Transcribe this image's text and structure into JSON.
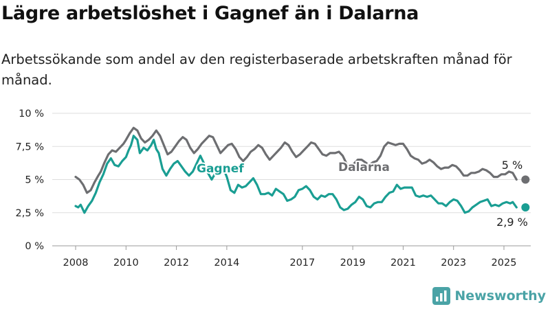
{
  "title": "Lägre arbetslöshet i Gagnef än i Dalarna",
  "subtitle": "Arbetssökande som andel av den registerbaserade arbetskraften månad för månad.",
  "brand": {
    "name": "Newsworthy",
    "icon": "bar-chart-logo-icon",
    "color": "#4aa3a6"
  },
  "chart_data": {
    "type": "line",
    "title": "Lägre arbetslöshet i Gagnef än i Dalarna",
    "subtitle": "Arbetssökande som andel av den registerbaserade arbetskraften månad för månad.",
    "xlabel": "",
    "ylabel": "",
    "ylim": [
      0,
      10
    ],
    "xlim": [
      2007.6,
      2025.8
    ],
    "grid": true,
    "y_ticks": [
      {
        "value": 0,
        "label": "0 %"
      },
      {
        "value": 2.5,
        "label": "2,5 %"
      },
      {
        "value": 5,
        "label": "5 %"
      },
      {
        "value": 7.5,
        "label": "7,5 %"
      },
      {
        "value": 10,
        "label": "10 %"
      }
    ],
    "x_ticks": [
      {
        "value": 2008,
        "label": "2008"
      },
      {
        "value": 2010,
        "label": "2010"
      },
      {
        "value": 2012,
        "label": "2012"
      },
      {
        "value": 2014,
        "label": "2014"
      },
      {
        "value": 2017,
        "label": "2017"
      },
      {
        "value": 2019,
        "label": "2019"
      },
      {
        "value": 2021,
        "label": "2021"
      },
      {
        "value": 2023,
        "label": "2023"
      },
      {
        "value": 2025,
        "label": "2025"
      }
    ],
    "series": [
      {
        "name": "Dalarna",
        "color": "#6d6e71",
        "end_label": "5 %",
        "points": [
          [
            2008.0,
            5.2
          ],
          [
            2008.15,
            5.0
          ],
          [
            2008.3,
            4.6
          ],
          [
            2008.45,
            4.0
          ],
          [
            2008.6,
            4.2
          ],
          [
            2008.75,
            4.8
          ],
          [
            2008.9,
            5.3
          ],
          [
            2009.0,
            5.6
          ],
          [
            2009.15,
            6.3
          ],
          [
            2009.3,
            6.9
          ],
          [
            2009.45,
            7.2
          ],
          [
            2009.6,
            7.1
          ],
          [
            2009.75,
            7.4
          ],
          [
            2009.9,
            7.7
          ],
          [
            2010.0,
            8.0
          ],
          [
            2010.15,
            8.5
          ],
          [
            2010.3,
            8.9
          ],
          [
            2010.45,
            8.7
          ],
          [
            2010.6,
            8.1
          ],
          [
            2010.75,
            7.8
          ],
          [
            2010.9,
            8.0
          ],
          [
            2011.05,
            8.3
          ],
          [
            2011.2,
            8.7
          ],
          [
            2011.35,
            8.3
          ],
          [
            2011.5,
            7.6
          ],
          [
            2011.65,
            6.9
          ],
          [
            2011.8,
            7.1
          ],
          [
            2011.95,
            7.5
          ],
          [
            2012.1,
            7.9
          ],
          [
            2012.25,
            8.2
          ],
          [
            2012.4,
            8.0
          ],
          [
            2012.55,
            7.4
          ],
          [
            2012.7,
            7.0
          ],
          [
            2012.85,
            7.3
          ],
          [
            2013.0,
            7.7
          ],
          [
            2013.15,
            8.0
          ],
          [
            2013.3,
            8.3
          ],
          [
            2013.45,
            8.2
          ],
          [
            2013.6,
            7.6
          ],
          [
            2013.75,
            7.0
          ],
          [
            2013.9,
            7.3
          ],
          [
            2014.05,
            7.6
          ],
          [
            2014.2,
            7.7
          ],
          [
            2014.35,
            7.3
          ],
          [
            2014.5,
            6.7
          ],
          [
            2014.65,
            6.4
          ],
          [
            2014.8,
            6.7
          ],
          [
            2014.95,
            7.1
          ],
          [
            2015.1,
            7.3
          ],
          [
            2015.25,
            7.6
          ],
          [
            2015.4,
            7.4
          ],
          [
            2015.55,
            6.9
          ],
          [
            2015.7,
            6.5
          ],
          [
            2015.85,
            6.8
          ],
          [
            2016.0,
            7.1
          ],
          [
            2016.15,
            7.4
          ],
          [
            2016.3,
            7.8
          ],
          [
            2016.45,
            7.6
          ],
          [
            2016.6,
            7.1
          ],
          [
            2016.75,
            6.7
          ],
          [
            2016.9,
            6.9
          ],
          [
            2017.05,
            7.2
          ],
          [
            2017.2,
            7.5
          ],
          [
            2017.35,
            7.8
          ],
          [
            2017.5,
            7.7
          ],
          [
            2017.65,
            7.3
          ],
          [
            2017.8,
            6.9
          ],
          [
            2017.95,
            6.8
          ],
          [
            2018.1,
            7.0
          ],
          [
            2018.3,
            7.0
          ],
          [
            2018.45,
            7.1
          ],
          [
            2018.6,
            6.8
          ],
          [
            2018.75,
            6.2
          ],
          [
            2018.9,
            6.0
          ],
          [
            2019.05,
            6.2
          ],
          [
            2019.2,
            6.5
          ],
          [
            2019.35,
            6.5
          ],
          [
            2019.5,
            6.3
          ],
          [
            2019.65,
            6.1
          ],
          [
            2019.8,
            6.3
          ],
          [
            2019.95,
            6.4
          ],
          [
            2020.1,
            6.8
          ],
          [
            2020.25,
            7.5
          ],
          [
            2020.4,
            7.8
          ],
          [
            2020.55,
            7.7
          ],
          [
            2020.7,
            7.6
          ],
          [
            2020.85,
            7.7
          ],
          [
            2021.0,
            7.7
          ],
          [
            2021.15,
            7.3
          ],
          [
            2021.3,
            6.8
          ],
          [
            2021.45,
            6.6
          ],
          [
            2021.6,
            6.5
          ],
          [
            2021.75,
            6.2
          ],
          [
            2021.9,
            6.3
          ],
          [
            2022.05,
            6.5
          ],
          [
            2022.2,
            6.3
          ],
          [
            2022.35,
            6.0
          ],
          [
            2022.5,
            5.8
          ],
          [
            2022.65,
            5.9
          ],
          [
            2022.8,
            5.9
          ],
          [
            2022.95,
            6.1
          ],
          [
            2023.1,
            6.0
          ],
          [
            2023.25,
            5.7
          ],
          [
            2023.4,
            5.3
          ],
          [
            2023.55,
            5.3
          ],
          [
            2023.7,
            5.5
          ],
          [
            2023.85,
            5.5
          ],
          [
            2024.0,
            5.6
          ],
          [
            2024.15,
            5.8
          ],
          [
            2024.3,
            5.7
          ],
          [
            2024.45,
            5.5
          ],
          [
            2024.6,
            5.2
          ],
          [
            2024.75,
            5.2
          ],
          [
            2024.9,
            5.4
          ],
          [
            2025.05,
            5.4
          ],
          [
            2025.2,
            5.6
          ],
          [
            2025.35,
            5.5
          ],
          [
            2025.5,
            5.0
          ]
        ]
      },
      {
        "name": "Gagnef",
        "color": "#1a9e93",
        "end_label": "2,9 %",
        "points": [
          [
            2008.0,
            3.0
          ],
          [
            2008.1,
            2.9
          ],
          [
            2008.2,
            3.1
          ],
          [
            2008.35,
            2.5
          ],
          [
            2008.5,
            3.0
          ],
          [
            2008.65,
            3.4
          ],
          [
            2008.8,
            4.0
          ],
          [
            2008.95,
            4.8
          ],
          [
            2009.1,
            5.4
          ],
          [
            2009.25,
            6.2
          ],
          [
            2009.4,
            6.6
          ],
          [
            2009.55,
            6.1
          ],
          [
            2009.7,
            6.0
          ],
          [
            2009.85,
            6.4
          ],
          [
            2010.0,
            6.7
          ],
          [
            2010.1,
            7.2
          ],
          [
            2010.2,
            7.6
          ],
          [
            2010.3,
            8.3
          ],
          [
            2010.45,
            8.0
          ],
          [
            2010.55,
            7.0
          ],
          [
            2010.7,
            7.4
          ],
          [
            2010.85,
            7.2
          ],
          [
            2011.0,
            7.6
          ],
          [
            2011.1,
            8.0
          ],
          [
            2011.2,
            7.3
          ],
          [
            2011.3,
            7.0
          ],
          [
            2011.45,
            5.8
          ],
          [
            2011.6,
            5.3
          ],
          [
            2011.75,
            5.8
          ],
          [
            2011.9,
            6.2
          ],
          [
            2012.05,
            6.4
          ],
          [
            2012.2,
            6.0
          ],
          [
            2012.35,
            5.6
          ],
          [
            2012.5,
            5.3
          ],
          [
            2012.65,
            5.6
          ],
          [
            2012.8,
            6.2
          ],
          [
            2012.95,
            6.8
          ],
          [
            2013.1,
            6.2
          ],
          [
            2013.25,
            5.5
          ],
          [
            2013.4,
            5.0
          ],
          [
            2013.55,
            5.5
          ],
          [
            2013.7,
            5.9
          ],
          [
            2013.85,
            5.9
          ],
          [
            2014.0,
            5.2
          ],
          [
            2014.15,
            4.2
          ],
          [
            2014.3,
            4.0
          ],
          [
            2014.45,
            4.6
          ],
          [
            2014.6,
            4.4
          ],
          [
            2014.75,
            4.5
          ],
          [
            2014.9,
            4.8
          ],
          [
            2015.05,
            5.1
          ],
          [
            2015.2,
            4.6
          ],
          [
            2015.35,
            3.9
          ],
          [
            2015.5,
            3.9
          ],
          [
            2015.65,
            4.0
          ],
          [
            2015.8,
            3.8
          ],
          [
            2015.95,
            4.3
          ],
          [
            2016.1,
            4.1
          ],
          [
            2016.25,
            3.9
          ],
          [
            2016.4,
            3.4
          ],
          [
            2016.55,
            3.5
          ],
          [
            2016.7,
            3.7
          ],
          [
            2016.85,
            4.2
          ],
          [
            2017.0,
            4.3
          ],
          [
            2017.15,
            4.5
          ],
          [
            2017.3,
            4.2
          ],
          [
            2017.45,
            3.7
          ],
          [
            2017.6,
            3.5
          ],
          [
            2017.75,
            3.8
          ],
          [
            2017.9,
            3.7
          ],
          [
            2018.05,
            3.9
          ],
          [
            2018.2,
            3.9
          ],
          [
            2018.35,
            3.5
          ],
          [
            2018.5,
            2.9
          ],
          [
            2018.65,
            2.7
          ],
          [
            2018.8,
            2.8
          ],
          [
            2018.95,
            3.1
          ],
          [
            2019.1,
            3.3
          ],
          [
            2019.25,
            3.7
          ],
          [
            2019.4,
            3.5
          ],
          [
            2019.55,
            3.0
          ],
          [
            2019.7,
            2.9
          ],
          [
            2019.85,
            3.2
          ],
          [
            2020.0,
            3.3
          ],
          [
            2020.15,
            3.3
          ],
          [
            2020.3,
            3.7
          ],
          [
            2020.45,
            4.0
          ],
          [
            2020.6,
            4.1
          ],
          [
            2020.75,
            4.6
          ],
          [
            2020.9,
            4.3
          ],
          [
            2021.05,
            4.4
          ],
          [
            2021.2,
            4.4
          ],
          [
            2021.35,
            4.4
          ],
          [
            2021.5,
            3.8
          ],
          [
            2021.65,
            3.7
          ],
          [
            2021.8,
            3.8
          ],
          [
            2021.95,
            3.7
          ],
          [
            2022.1,
            3.8
          ],
          [
            2022.25,
            3.5
          ],
          [
            2022.4,
            3.2
          ],
          [
            2022.55,
            3.2
          ],
          [
            2022.7,
            3.0
          ],
          [
            2022.85,
            3.3
          ],
          [
            2023.0,
            3.5
          ],
          [
            2023.15,
            3.4
          ],
          [
            2023.3,
            3.0
          ],
          [
            2023.45,
            2.5
          ],
          [
            2023.6,
            2.6
          ],
          [
            2023.75,
            2.9
          ],
          [
            2023.9,
            3.1
          ],
          [
            2024.05,
            3.3
          ],
          [
            2024.2,
            3.4
          ],
          [
            2024.35,
            3.5
          ],
          [
            2024.5,
            3.0
          ],
          [
            2024.65,
            3.1
          ],
          [
            2024.8,
            3.0
          ],
          [
            2024.95,
            3.2
          ],
          [
            2025.1,
            3.3
          ],
          [
            2025.25,
            3.2
          ],
          [
            2025.35,
            3.3
          ],
          [
            2025.5,
            2.9
          ]
        ]
      }
    ]
  }
}
